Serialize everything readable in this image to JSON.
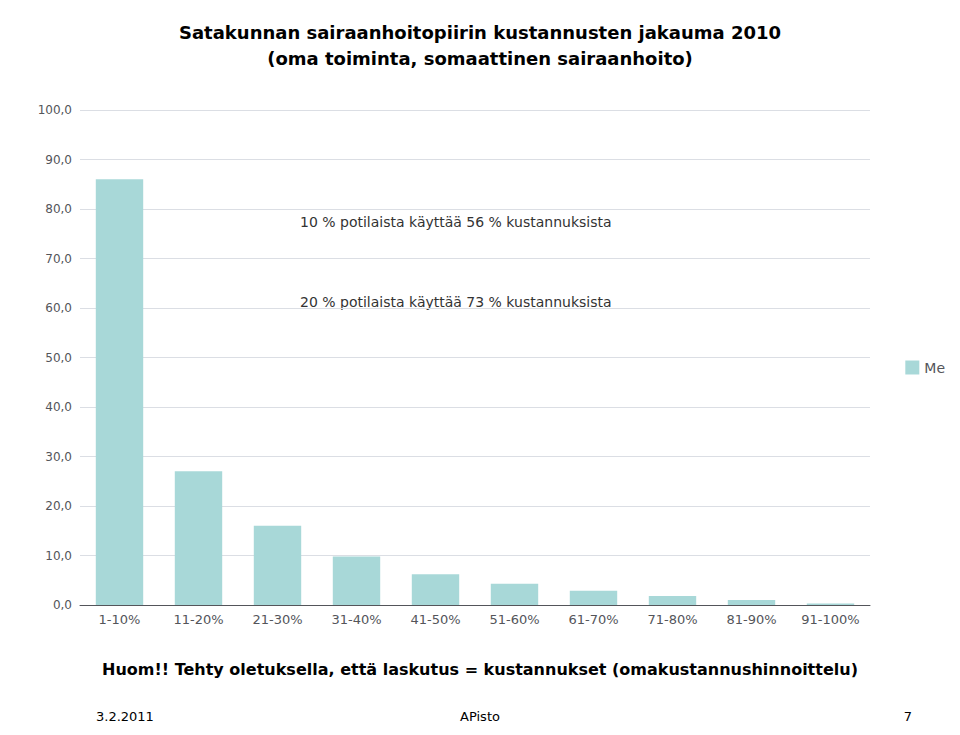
{
  "chart_data": {
    "type": "bar",
    "title": "Satakunnan sairaanhoitopiirin kustannusten jakauma 2010",
    "subtitle": "(oma toiminta, somaattinen sairaanhoito)",
    "categories": [
      "1-10%",
      "11-20%",
      "21-30%",
      "31-40%",
      "41-50%",
      "51-60%",
      "61-70%",
      "71-80%",
      "81-90%",
      "91-100%"
    ],
    "series": [
      {
        "name": "Me",
        "color": "#a8d8d8",
        "values": [
          86.0,
          27.0,
          16.0,
          9.8,
          6.2,
          4.3,
          2.9,
          1.8,
          1.0,
          0.3
        ]
      }
    ],
    "ylim": [
      0,
      100
    ],
    "yticks": [
      {
        "value": 0,
        "label": "0,0"
      },
      {
        "value": 10,
        "label": "10,0"
      },
      {
        "value": 20,
        "label": "20,0"
      },
      {
        "value": 30,
        "label": "30,0"
      },
      {
        "value": 40,
        "label": "40,0"
      },
      {
        "value": 50,
        "label": "50,0"
      },
      {
        "value": 60,
        "label": "60,0"
      },
      {
        "value": 70,
        "label": "70,0"
      },
      {
        "value": 80,
        "label": "80,0"
      },
      {
        "value": 90,
        "label": "90,0"
      },
      {
        "value": 100,
        "label": "100,0"
      }
    ],
    "grid": true,
    "legend": "right",
    "annotations": [
      "10 % potilaista käyttää 56 % kustannuksista",
      "20 % potilaista käyttää 73 % kustannuksista"
    ],
    "footnote": "Huom!! Tehty oletuksella, että laskutus = kustannukset (omakustannushinnoittelu)",
    "footer": [
      "3.2.2011",
      "APisto",
      "7"
    ]
  }
}
